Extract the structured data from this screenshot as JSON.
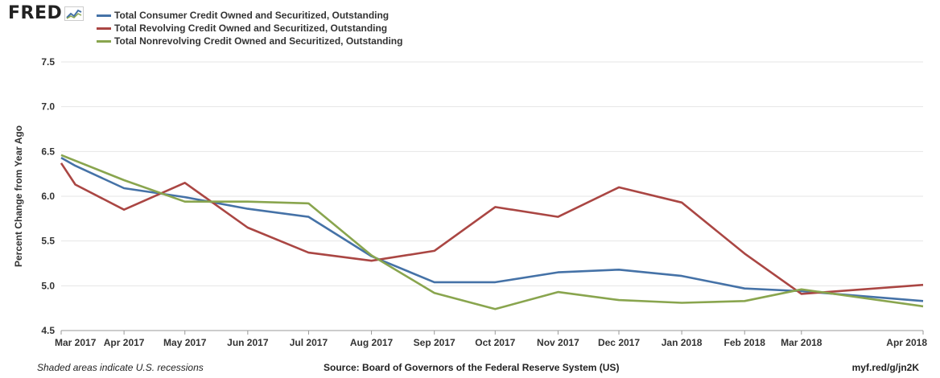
{
  "logo": {
    "text": "FRED"
  },
  "footer": {
    "recessions_note": "Shaded areas indicate U.S. recessions",
    "source": "Source: Board of Governors of the Federal Reserve System (US)",
    "link": "myf.red/g/jn2K"
  },
  "colors": {
    "consumer": "#4572a7",
    "revolving": "#aa4643",
    "nonrevolving": "#89a54e",
    "grid": "#e6e6e6",
    "axis": "#999999"
  },
  "chart_data": {
    "type": "line",
    "title": "",
    "xlabel": "",
    "ylabel": "Percent Change from Year Ago",
    "ylim": [
      4.5,
      7.5
    ],
    "yticks": [
      "4.5",
      "5.0",
      "5.5",
      "6.0",
      "6.5",
      "7.0",
      "7.5"
    ],
    "grid": true,
    "legend_position": "top-left",
    "x_ticks": [
      "Mar 2017",
      "Apr 2017",
      "May 2017",
      "Jun 2017",
      "Jul 2017",
      "Aug 2017",
      "Sep 2017",
      "Oct 2017",
      "Nov 2017",
      "Dec 2017",
      "Jan 2018",
      "Feb 2018",
      "Mar 2018",
      "Apr 2018"
    ],
    "x_range": [
      "2017-03-01",
      "2018-04-30"
    ],
    "series": [
      {
        "name": "Total Consumer Credit Owned and Securitized, Outstanding",
        "color": "#4572a7",
        "points": [
          [
            "2017-03-01",
            6.43
          ],
          [
            "2017-03-08",
            6.34
          ],
          [
            "2017-04-01",
            6.09
          ],
          [
            "2017-05-01",
            5.99
          ],
          [
            "2017-06-01",
            5.86
          ],
          [
            "2017-07-01",
            5.77
          ],
          [
            "2017-08-01",
            5.33
          ],
          [
            "2017-09-01",
            5.04
          ],
          [
            "2017-10-01",
            5.04
          ],
          [
            "2017-11-01",
            5.15
          ],
          [
            "2017-12-01",
            5.18
          ],
          [
            "2018-01-01",
            5.11
          ],
          [
            "2018-02-01",
            4.97
          ],
          [
            "2018-03-01",
            4.94
          ],
          [
            "2018-04-30",
            4.83
          ]
        ]
      },
      {
        "name": "Total Revolving Credit Owned and Securitized, Outstanding",
        "color": "#aa4643",
        "points": [
          [
            "2017-03-01",
            6.37
          ],
          [
            "2017-03-08",
            6.13
          ],
          [
            "2017-04-01",
            5.85
          ],
          [
            "2017-05-01",
            6.15
          ],
          [
            "2017-06-01",
            5.65
          ],
          [
            "2017-07-01",
            5.37
          ],
          [
            "2017-08-01",
            5.28
          ],
          [
            "2017-09-01",
            5.39
          ],
          [
            "2017-10-01",
            5.88
          ],
          [
            "2017-11-01",
            5.77
          ],
          [
            "2017-12-01",
            6.1
          ],
          [
            "2018-01-01",
            5.93
          ],
          [
            "2018-02-01",
            5.36
          ],
          [
            "2018-03-01",
            4.91
          ],
          [
            "2018-04-30",
            5.01
          ]
        ]
      },
      {
        "name": "Total Nonrevolving Credit Owned and Securitized, Outstanding",
        "color": "#89a54e",
        "points": [
          [
            "2017-03-01",
            6.46
          ],
          [
            "2017-04-01",
            6.18
          ],
          [
            "2017-05-01",
            5.94
          ],
          [
            "2017-06-01",
            5.94
          ],
          [
            "2017-07-01",
            5.92
          ],
          [
            "2017-08-01",
            5.34
          ],
          [
            "2017-09-01",
            4.92
          ],
          [
            "2017-10-01",
            4.74
          ],
          [
            "2017-11-01",
            4.93
          ],
          [
            "2017-12-01",
            4.84
          ],
          [
            "2018-01-01",
            4.81
          ],
          [
            "2018-02-01",
            4.83
          ],
          [
            "2018-03-01",
            4.96
          ],
          [
            "2018-04-30",
            4.77
          ]
        ]
      }
    ]
  }
}
